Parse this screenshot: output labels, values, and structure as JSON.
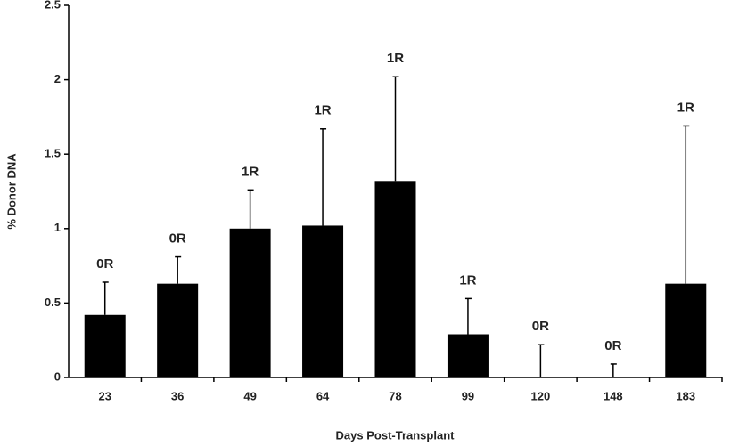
{
  "chart_data": {
    "type": "bar",
    "x_label": "Days Post-Transplant",
    "y_label": "% Donor DNA",
    "categories": [
      "23",
      "36",
      "49",
      "64",
      "78",
      "99",
      "120",
      "148",
      "183"
    ],
    "values": [
      0.42,
      0.63,
      1.0,
      1.02,
      1.32,
      0.29,
      0,
      0,
      0.63
    ],
    "errors": [
      0.22,
      0.18,
      0.26,
      0.65,
      0.7,
      0.24,
      0.22,
      0.09,
      1.06
    ],
    "annotations": [
      "0R",
      "0R",
      "1R",
      "1R",
      "1R",
      "1R",
      "0R",
      "0R",
      "1R"
    ],
    "color": "#000000",
    "ylim": [
      0,
      2.5
    ],
    "yticks": [
      0,
      0.5,
      1,
      1.5,
      2,
      2.5
    ],
    "grid": false
  }
}
